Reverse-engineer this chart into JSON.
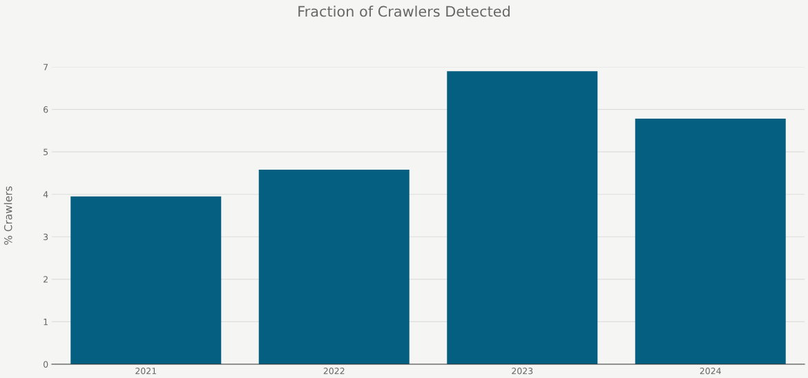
{
  "chart_data": {
    "type": "bar",
    "title": "Fraction of Crawlers Detected",
    "ylabel": "% Crawlers",
    "categories": [
      "2021",
      "2022",
      "2023",
      "2024"
    ],
    "values": [
      3.95,
      4.58,
      6.9,
      5.78
    ],
    "color": "#055f80",
    "ylim": [
      0,
      7
    ],
    "yticks": [
      0,
      1,
      2,
      3,
      4,
      5,
      6,
      7
    ],
    "grid": "y"
  }
}
